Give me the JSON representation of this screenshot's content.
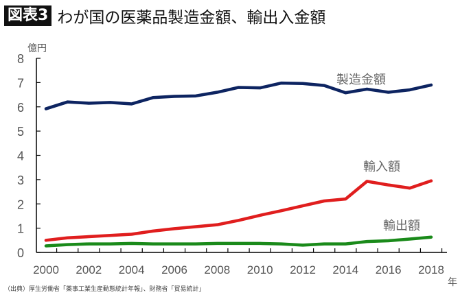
{
  "header": {
    "badge": "図表3",
    "title": "わが国の医薬品製造金額、輸出入金額"
  },
  "source": "（出典）厚生労働省「薬事工業生産動態統計年報」、財務省「貿易統計」",
  "chart_data": {
    "type": "line",
    "ylabel": "億円",
    "xlabel": "年",
    "ylim": [
      0,
      8
    ],
    "yticks": [
      0,
      1,
      2,
      3,
      4,
      5,
      6,
      7,
      8
    ],
    "xticks": [
      2000,
      2002,
      2004,
      2006,
      2008,
      2010,
      2012,
      2014,
      2016,
      2018
    ],
    "x": [
      2000,
      2001,
      2002,
      2003,
      2004,
      2005,
      2006,
      2007,
      2008,
      2009,
      2010,
      2011,
      2012,
      2013,
      2014,
      2015,
      2016,
      2017,
      2018
    ],
    "grid": false,
    "legend": "inline labels",
    "series": [
      {
        "name": "製造金額",
        "color": "#0d2461",
        "values": [
          5.92,
          6.2,
          6.15,
          6.18,
          6.12,
          6.38,
          6.43,
          6.45,
          6.6,
          6.8,
          6.78,
          6.98,
          6.96,
          6.88,
          6.58,
          6.73,
          6.6,
          6.7,
          6.9
        ]
      },
      {
        "name": "輸入額",
        "color": "#e01e1e",
        "values": [
          0.5,
          0.6,
          0.65,
          0.7,
          0.75,
          0.88,
          0.98,
          1.06,
          1.14,
          1.32,
          1.53,
          1.72,
          1.92,
          2.12,
          2.2,
          2.93,
          2.78,
          2.65,
          2.95
        ]
      },
      {
        "name": "輸出額",
        "color": "#1a8a1a",
        "values": [
          0.27,
          0.32,
          0.35,
          0.35,
          0.37,
          0.35,
          0.35,
          0.35,
          0.37,
          0.37,
          0.37,
          0.35,
          0.3,
          0.35,
          0.35,
          0.45,
          0.48,
          0.55,
          0.63
        ]
      }
    ]
  }
}
